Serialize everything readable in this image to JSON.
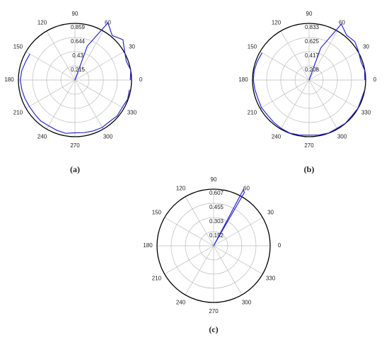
{
  "chart_data": [
    {
      "type": "polar",
      "label": "(a)",
      "color": "#2a2ad0",
      "theta": [
        0,
        10,
        20,
        30,
        40,
        50,
        60,
        70,
        80,
        90,
        100,
        110,
        120,
        130,
        140,
        150,
        160,
        170,
        180,
        190,
        200,
        210,
        220,
        230,
        240,
        250,
        260,
        270,
        280,
        290,
        300,
        310,
        320,
        330,
        340,
        350
      ],
      "r": [
        0.84,
        0.86,
        0.83,
        0.87,
        0.95,
        0.88,
        1.0,
        0.55,
        0,
        null,
        null,
        null,
        null,
        null,
        null,
        0.79,
        0.8,
        0.82,
        0.83,
        0.82,
        0.81,
        0.8,
        0.8,
        0.81,
        0.8,
        0.81,
        0.82,
        0.8,
        0.81,
        0.82,
        0.83,
        0.82,
        0.84,
        0.83,
        0.85,
        0.84
      ],
      "rlim": [
        0,
        0.859
      ],
      "rticks": [
        0.215,
        0.43,
        0.644,
        0.859
      ],
      "thetaticks": [
        0,
        30,
        60,
        90,
        120,
        150,
        180,
        210,
        240,
        270,
        300,
        330
      ]
    },
    {
      "type": "polar",
      "label": "(b)",
      "color": "#2a2ad0",
      "theta": [
        0,
        10,
        20,
        30,
        40,
        50,
        60,
        70,
        80,
        90,
        100,
        110,
        120,
        130,
        140,
        150,
        160,
        170,
        180,
        190,
        200,
        210,
        220,
        230,
        240,
        250,
        260,
        270,
        280,
        290,
        300,
        310,
        320,
        330,
        340,
        350
      ],
      "r": [
        0.82,
        0.83,
        0.81,
        0.84,
        0.88,
        0.86,
        0.95,
        0.5,
        0,
        null,
        null,
        null,
        null,
        null,
        null,
        0.8,
        0.81,
        0.82,
        0.82,
        0.81,
        0.8,
        0.81,
        0.8,
        0.81,
        0.82,
        0.83,
        0.82,
        0.81,
        0.82,
        0.83,
        0.82,
        0.83,
        0.82,
        0.83,
        0.82,
        0.83
      ],
      "rlim": [
        0,
        0.833
      ],
      "rticks": [
        0.208,
        0.417,
        0.625,
        0.833
      ],
      "thetaticks": [
        0,
        30,
        60,
        90,
        120,
        150,
        180,
        210,
        240,
        270,
        300,
        330
      ]
    },
    {
      "type": "polar",
      "label": "(c)",
      "color": "#2a2ad0",
      "theta": [
        55,
        60,
        62,
        65
      ],
      "r": [
        0,
        0.66,
        0.68,
        0
      ],
      "rlim": [
        0,
        0.607
      ],
      "rticks": [
        0.152,
        0.303,
        0.455,
        0.607
      ],
      "thetaticks": [
        0,
        30,
        60,
        90,
        120,
        150,
        180,
        210,
        240,
        270,
        300,
        330
      ]
    }
  ]
}
